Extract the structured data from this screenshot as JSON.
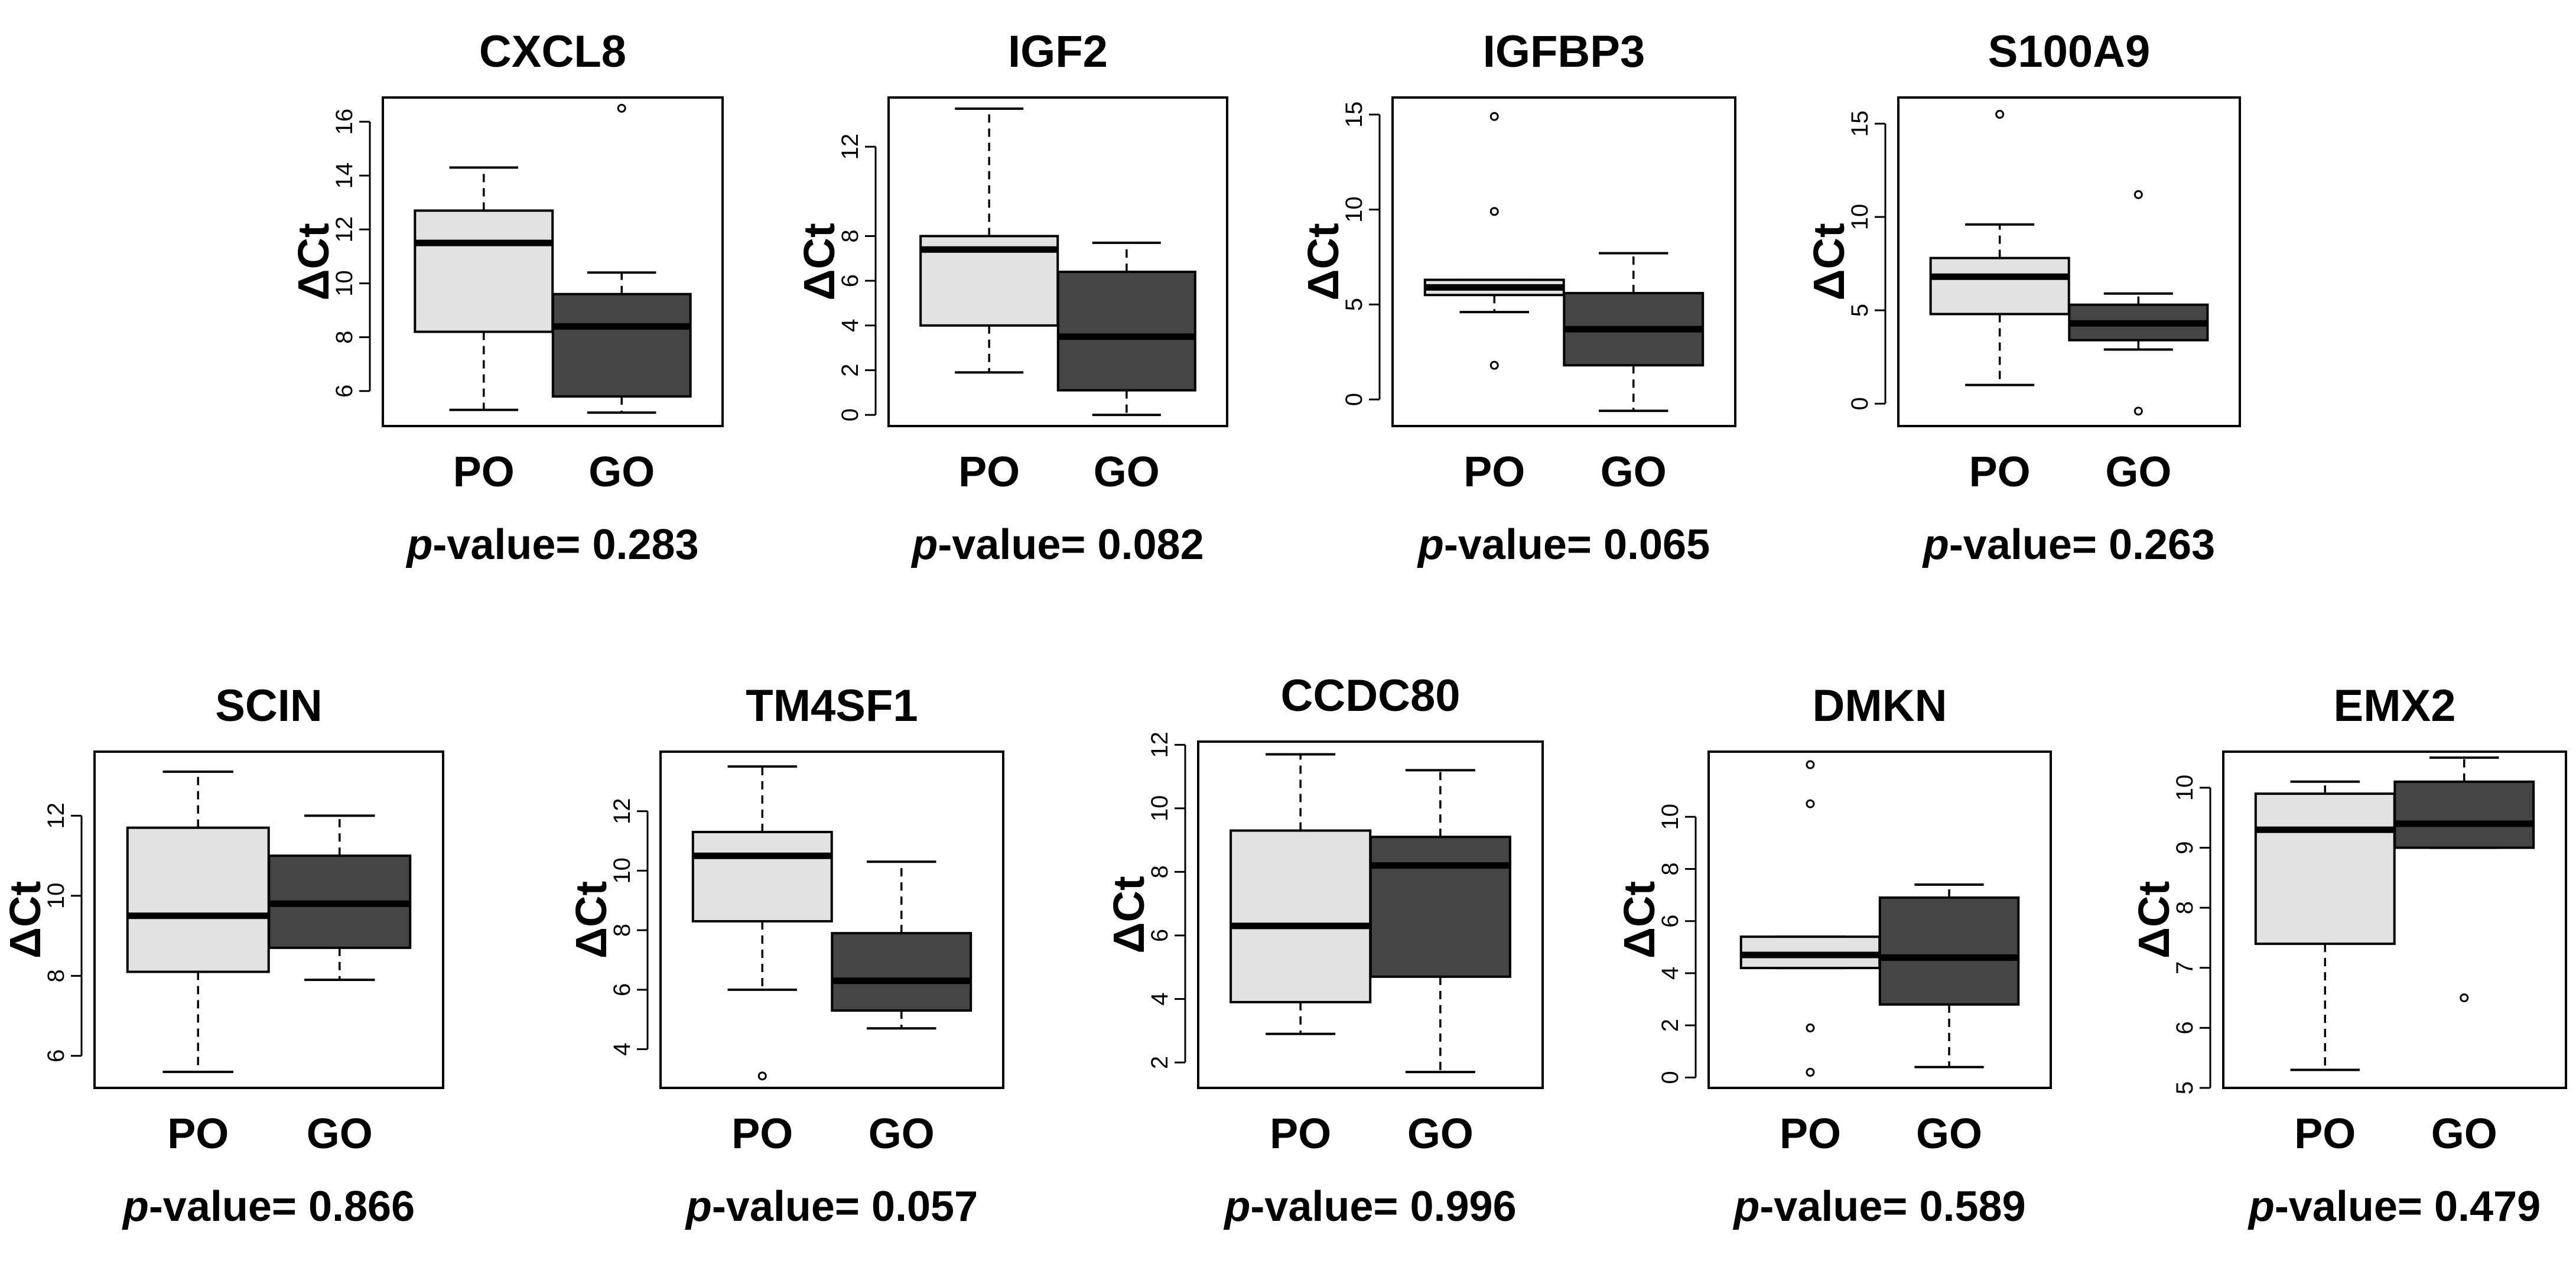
{
  "figure": {
    "y_axis_label": "ΔCt",
    "pvalue_prefix_italic": "p",
    "pvalue_prefix_rest": "-value= "
  },
  "colors": {
    "PO": "#e2e2e2",
    "GO": "#454545",
    "stroke": "#000000"
  },
  "chart_data": [
    {
      "type": "boxplot",
      "title": "CXCL8",
      "ylabel": "ΔCt",
      "categories": [
        "PO",
        "GO"
      ],
      "ylim": [
        4.7,
        16.9
      ],
      "yticks": [
        6,
        8,
        10,
        12,
        14,
        16
      ],
      "p_value": "0.283",
      "boxes": [
        {
          "group": "PO",
          "min": 5.3,
          "q1": 8.2,
          "median": 11.5,
          "q3": 12.7,
          "max": 14.3,
          "outliers": []
        },
        {
          "group": "GO",
          "min": 5.2,
          "q1": 5.8,
          "median": 8.4,
          "q3": 9.6,
          "max": 10.4,
          "outliers": [
            16.5
          ]
        }
      ]
    },
    {
      "type": "boxplot",
      "title": "IGF2",
      "ylabel": "ΔCt",
      "categories": [
        "PO",
        "GO"
      ],
      "ylim": [
        -0.5,
        14.2
      ],
      "yticks": [
        0,
        2,
        4,
        6,
        8,
        12
      ],
      "p_value": "0.082",
      "boxes": [
        {
          "group": "PO",
          "min": 1.9,
          "q1": 4.0,
          "median": 7.4,
          "q3": 8.0,
          "max": 13.7,
          "outliers": []
        },
        {
          "group": "GO",
          "min": 0.0,
          "q1": 1.1,
          "median": 3.5,
          "q3": 6.4,
          "max": 7.7,
          "outliers": []
        }
      ]
    },
    {
      "type": "boxplot",
      "title": "IGFBP3",
      "ylabel": "ΔCt",
      "categories": [
        "PO",
        "GO"
      ],
      "ylim": [
        -1.4,
        15.9
      ],
      "yticks": [
        0,
        5,
        10,
        15
      ],
      "p_value": "0.065",
      "boxes": [
        {
          "group": "PO",
          "min": 4.6,
          "q1": 5.5,
          "median": 5.9,
          "q3": 6.3,
          "max": 6.3,
          "outliers": [
            1.8,
            9.9,
            14.9
          ]
        },
        {
          "group": "GO",
          "min": -0.6,
          "q1": 1.8,
          "median": 3.7,
          "q3": 5.6,
          "max": 7.7,
          "outliers": []
        }
      ]
    },
    {
      "type": "boxplot",
      "title": "S100A9",
      "ylabel": "ΔCt",
      "categories": [
        "PO",
        "GO"
      ],
      "ylim": [
        -1.2,
        16.4
      ],
      "yticks": [
        0,
        5,
        10,
        15
      ],
      "p_value": "0.263",
      "boxes": [
        {
          "group": "PO",
          "min": 1.0,
          "q1": 4.8,
          "median": 6.8,
          "q3": 7.8,
          "max": 9.6,
          "outliers": [
            15.5
          ]
        },
        {
          "group": "GO",
          "min": 2.9,
          "q1": 3.4,
          "median": 4.3,
          "q3": 5.3,
          "max": 5.9,
          "outliers": [
            -0.4,
            11.2
          ]
        }
      ]
    },
    {
      "type": "boxplot",
      "title": "SCIN",
      "ylabel": "ΔCt",
      "categories": [
        "PO",
        "GO"
      ],
      "ylim": [
        5.2,
        13.6
      ],
      "yticks": [
        6,
        8,
        10,
        12
      ],
      "p_value": "0.866",
      "boxes": [
        {
          "group": "PO",
          "min": 5.6,
          "q1": 8.1,
          "median": 9.5,
          "q3": 11.7,
          "max": 13.1,
          "outliers": []
        },
        {
          "group": "GO",
          "min": 7.9,
          "q1": 8.7,
          "median": 9.8,
          "q3": 11.0,
          "max": 12.0,
          "outliers": []
        }
      ]
    },
    {
      "type": "boxplot",
      "title": "TM4SF1",
      "ylabel": "ΔCt",
      "categories": [
        "PO",
        "GO"
      ],
      "ylim": [
        2.7,
        14.0
      ],
      "yticks": [
        4,
        6,
        8,
        10,
        12
      ],
      "p_value": "0.057",
      "boxes": [
        {
          "group": "PO",
          "min": 6.0,
          "q1": 8.3,
          "median": 10.5,
          "q3": 11.3,
          "max": 13.5,
          "outliers": [
            3.1
          ]
        },
        {
          "group": "GO",
          "min": 4.7,
          "q1": 5.3,
          "median": 6.3,
          "q3": 7.9,
          "max": 10.3,
          "outliers": []
        }
      ]
    },
    {
      "type": "boxplot",
      "title": "CCDC80",
      "ylabel": "ΔCt",
      "categories": [
        "PO",
        "GO"
      ],
      "ylim": [
        1.2,
        12.1
      ],
      "yticks": [
        2,
        4,
        6,
        8,
        10,
        12
      ],
      "p_value": "0.996",
      "boxes": [
        {
          "group": "PO",
          "min": 2.9,
          "q1": 3.9,
          "median": 6.3,
          "q3": 9.3,
          "max": 11.7,
          "outliers": []
        },
        {
          "group": "GO",
          "min": 1.7,
          "q1": 4.7,
          "median": 8.2,
          "q3": 9.1,
          "max": 11.2,
          "outliers": []
        }
      ]
    },
    {
      "type": "boxplot",
      "title": "DMKN",
      "ylabel": "ΔCt",
      "categories": [
        "PO",
        "GO"
      ],
      "ylim": [
        -0.4,
        12.5
      ],
      "yticks": [
        0,
        2,
        4,
        6,
        8,
        10
      ],
      "p_value": "0.589",
      "boxes": [
        {
          "group": "PO",
          "min": 4.2,
          "q1": 4.2,
          "median": 4.7,
          "q3": 5.4,
          "max": 5.4,
          "outliers": [
            0.2,
            1.9,
            10.5,
            12.0
          ]
        },
        {
          "group": "GO",
          "min": 0.4,
          "q1": 2.8,
          "median": 4.6,
          "q3": 6.9,
          "max": 7.4,
          "outliers": []
        }
      ]
    },
    {
      "type": "boxplot",
      "title": "EMX2",
      "ylabel": "ΔCt",
      "categories": [
        "PO",
        "GO"
      ],
      "ylim": [
        5.0,
        10.6
      ],
      "yticks": [
        5,
        6,
        7,
        8,
        9,
        10
      ],
      "p_value": "0.479",
      "boxes": [
        {
          "group": "PO",
          "min": 5.3,
          "q1": 7.4,
          "median": 9.3,
          "q3": 9.9,
          "max": 10.1,
          "outliers": []
        },
        {
          "group": "GO",
          "min": 9.0,
          "q1": 9.0,
          "median": 9.4,
          "q3": 10.1,
          "max": 10.5,
          "outliers": [
            6.5
          ]
        }
      ]
    }
  ]
}
